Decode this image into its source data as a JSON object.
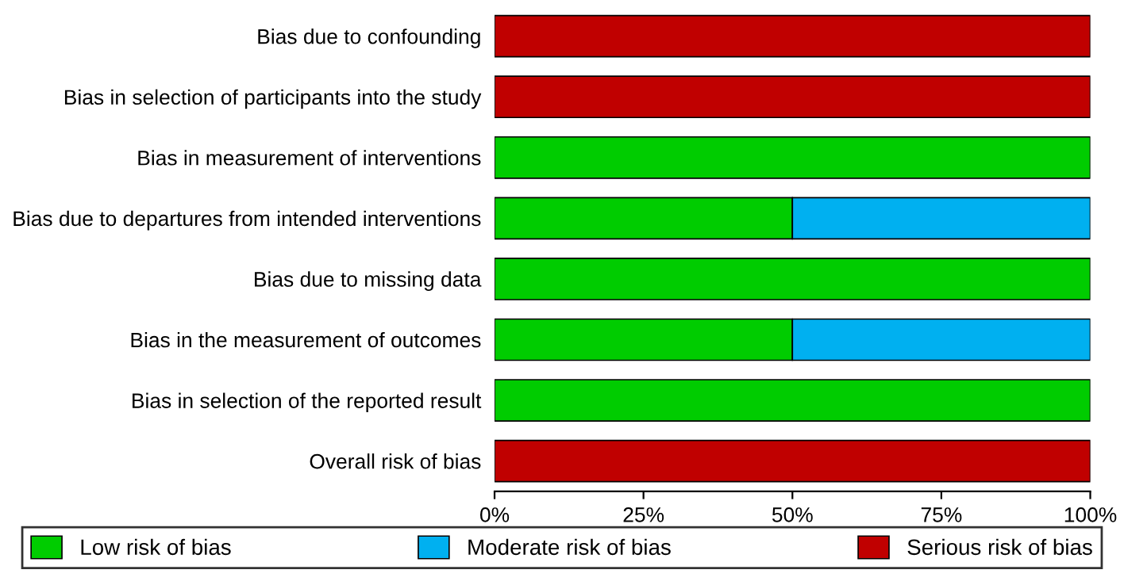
{
  "chart_data": {
    "type": "bar",
    "orientation": "horizontal",
    "stacked": true,
    "categories": [
      "Bias due to confounding",
      "Bias in selection of participants into the study",
      "Bias in measurement of interventions",
      "Bias due to departures from intended interventions",
      "Bias due to missing data",
      "Bias in the measurement of outcomes",
      "Bias in selection of the reported result",
      "Overall risk of bias"
    ],
    "series": [
      {
        "name": "Low risk of bias",
        "color": "#00cc00",
        "values": [
          null,
          null,
          100,
          50,
          100,
          50,
          100,
          null
        ]
      },
      {
        "name": "Moderate risk of bias",
        "color": "#00b0f0",
        "values": [
          null,
          null,
          null,
          50,
          null,
          50,
          null,
          null
        ]
      },
      {
        "name": "Serious risk of bias",
        "color": "#c00000",
        "values": [
          100,
          100,
          null,
          null,
          null,
          null,
          null,
          100
        ]
      }
    ],
    "xlim": [
      0,
      100
    ],
    "xticks": [
      {
        "value": 0,
        "label": "0%"
      },
      {
        "value": 25,
        "label": "25%"
      },
      {
        "value": 50,
        "label": "50%"
      },
      {
        "value": 75,
        "label": "75%"
      },
      {
        "value": 100,
        "label": "100%"
      }
    ],
    "grid": false,
    "legend": "bottom"
  }
}
